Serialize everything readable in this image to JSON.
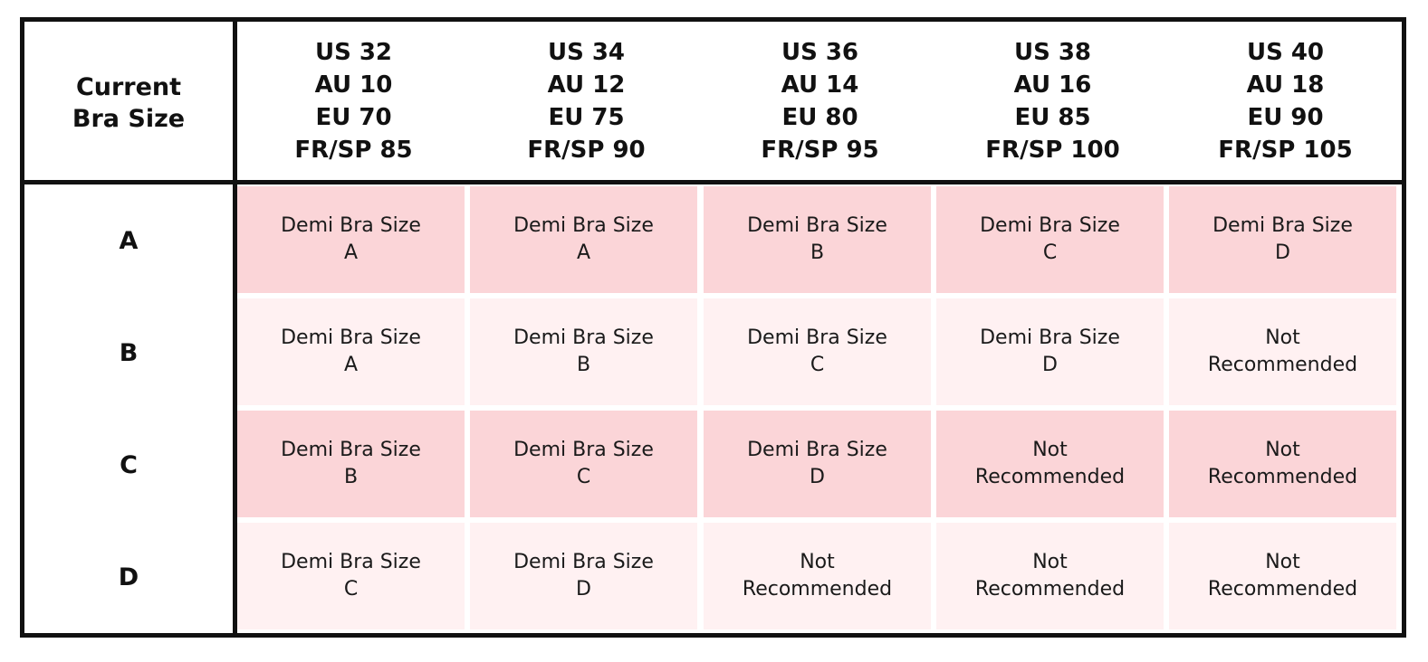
{
  "table": {
    "corner_label": [
      "Current",
      "Bra Size"
    ],
    "columns": [
      [
        "US 32",
        "AU 10",
        "EU 70",
        "FR/SP 85"
      ],
      [
        "US 34",
        "AU 12",
        "EU 75",
        "FR/SP 90"
      ],
      [
        "US 36",
        "AU 14",
        "EU 80",
        "FR/SP 95"
      ],
      [
        "US 38",
        "AU 16",
        "EU 85",
        "FR/SP 100"
      ],
      [
        "US 40",
        "AU 18",
        "EU 90",
        "FR/SP 105"
      ]
    ],
    "rows": [
      {
        "label": "A",
        "cells": [
          [
            "Demi Bra Size",
            "A"
          ],
          [
            "Demi Bra Size",
            "A"
          ],
          [
            "Demi Bra Size",
            "B"
          ],
          [
            "Demi Bra Size",
            "C"
          ],
          [
            "Demi Bra Size",
            "D"
          ]
        ]
      },
      {
        "label": "B",
        "cells": [
          [
            "Demi Bra Size",
            "A"
          ],
          [
            "Demi Bra Size",
            "B"
          ],
          [
            "Demi Bra Size",
            "C"
          ],
          [
            "Demi Bra Size",
            "D"
          ],
          [
            "Not",
            "Recommended"
          ]
        ]
      },
      {
        "label": "C",
        "cells": [
          [
            "Demi Bra Size",
            "B"
          ],
          [
            "Demi Bra Size",
            "C"
          ],
          [
            "Demi Bra Size",
            "D"
          ],
          [
            "Not",
            "Recommended"
          ],
          [
            "Not",
            "Recommended"
          ]
        ]
      },
      {
        "label": "D",
        "cells": [
          [
            "Demi Bra Size",
            "C"
          ],
          [
            "Demi Bra Size",
            "D"
          ],
          [
            "Not",
            "Recommended"
          ],
          [
            "Not",
            "Recommended"
          ],
          [
            "Not",
            "Recommended"
          ]
        ]
      }
    ],
    "colors": {
      "border": "#111111",
      "row_dark": "#fbd5d8",
      "row_light": "#fff1f2"
    }
  }
}
